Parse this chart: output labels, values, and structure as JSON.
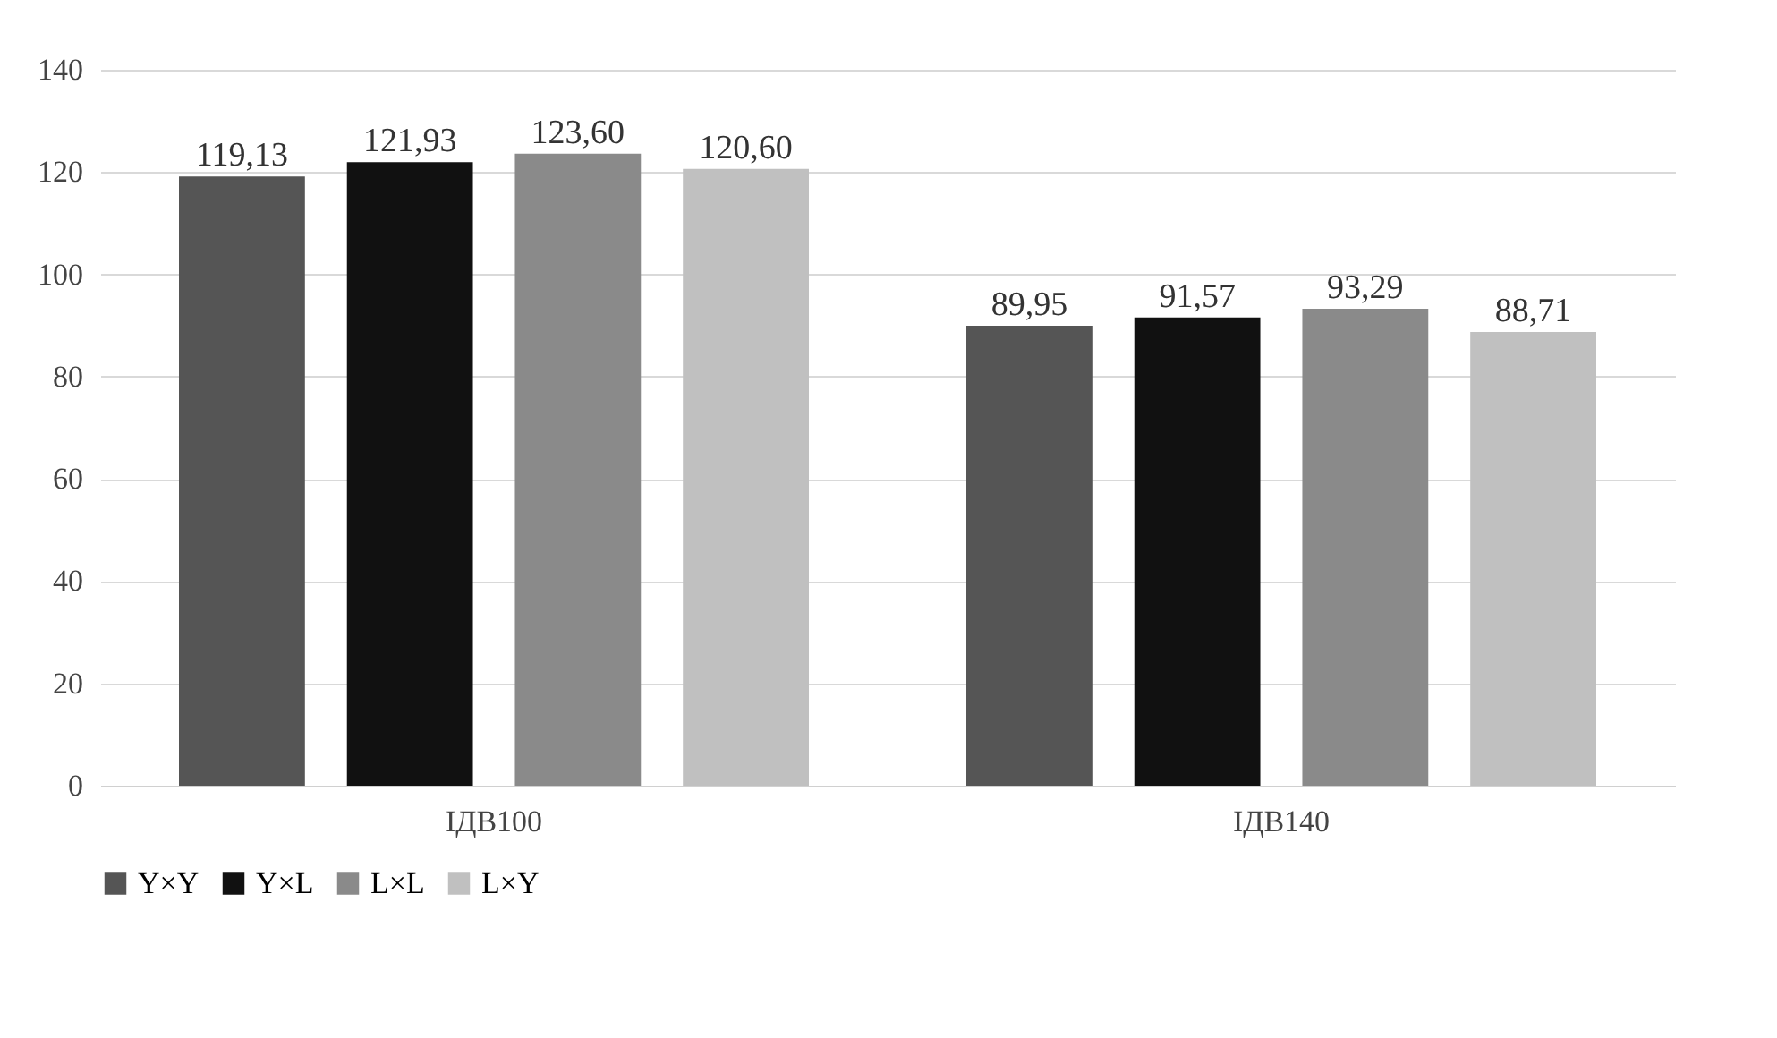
{
  "chart_data": {
    "type": "bar",
    "categories": [
      "ІДВ100",
      "ІДВ140"
    ],
    "series": [
      {
        "name": "Y×Y",
        "color": "#555555",
        "values": [
          119.13,
          89.95
        ],
        "value_labels": [
          "119,13",
          "89,95"
        ]
      },
      {
        "name": "Y×L",
        "color": "#111111",
        "values": [
          121.93,
          91.57
        ],
        "value_labels": [
          "121,93",
          "91,57"
        ]
      },
      {
        "name": "L×L",
        "color": "#8a8a8a",
        "values": [
          123.6,
          93.29
        ],
        "value_labels": [
          "123,60",
          "93,29"
        ]
      },
      {
        "name": "L×Y",
        "color": "#c0c0c0",
        "values": [
          120.6,
          88.71
        ],
        "value_labels": [
          "120,60",
          "88,71"
        ]
      }
    ],
    "ylim": [
      0,
      140
    ],
    "yticks": [
      0,
      20,
      40,
      60,
      80,
      100,
      120,
      140
    ],
    "grid": "y",
    "legend": "bottom"
  }
}
